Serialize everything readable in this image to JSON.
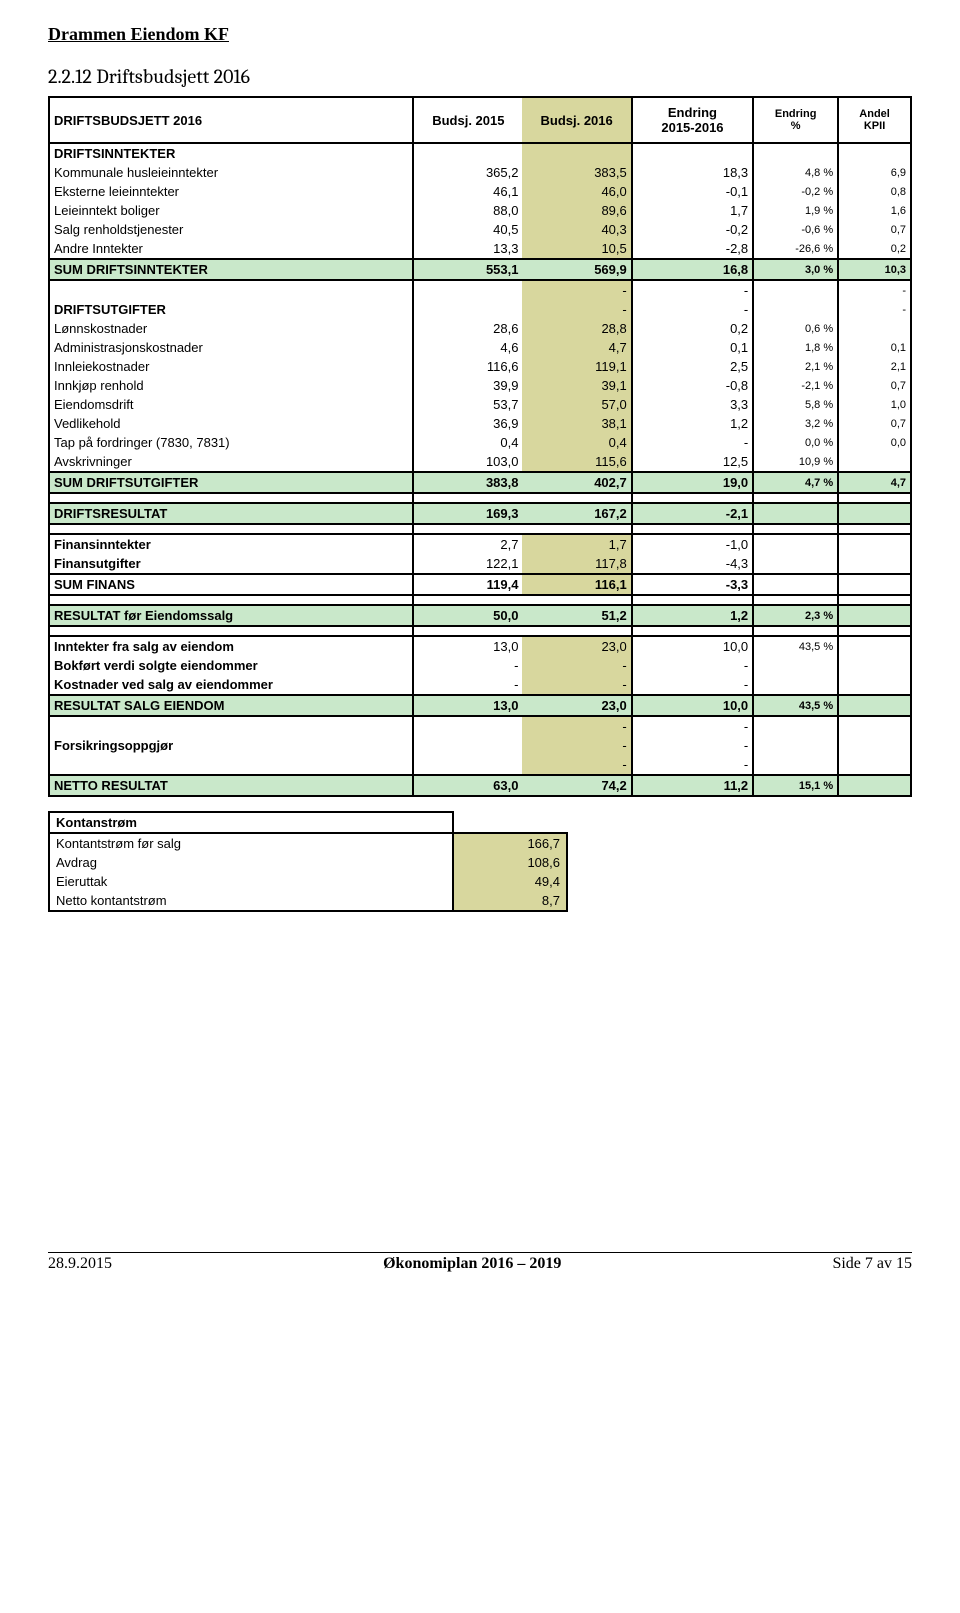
{
  "doc_header": "Drammen Eiendom KF",
  "section_title": "2.2.12  Driftsbudsjett 2016",
  "colors": {
    "olive": "#d8d79e",
    "green": "#c9e8ca",
    "border": "#000000",
    "bg": "#ffffff"
  },
  "header": {
    "c0": "DRIFTSBUDSJETT 2016",
    "c1": "Budsj. 2015",
    "c2": "Budsj. 2016",
    "c3a": "Endring",
    "c3b": "2015-2016",
    "c4a": "Endring",
    "c4b": "%",
    "c5a": "Andel",
    "c5b": "KPII"
  },
  "sections": {
    "driftsinntekter_label": "DRIFTSINNTEKTER",
    "driftsutgifter_label": "DRIFTSUTGIFTER"
  },
  "income_rows": [
    {
      "label": "Kommunale husleieinntekter",
      "v1": "365,2",
      "v2": "383,5",
      "ch": "18,3",
      "pct": "4,8 %",
      "k": "6,9"
    },
    {
      "label": "Eksterne leieinntekter",
      "v1": "46,1",
      "v2": "46,0",
      "ch": "-0,1",
      "pct": "-0,2 %",
      "k": "0,8"
    },
    {
      "label": "Leieinntekt boliger",
      "v1": "88,0",
      "v2": "89,6",
      "ch": "1,7",
      "pct": "1,9 %",
      "k": "1,6"
    },
    {
      "label": "Salg renholdstjenester",
      "v1": "40,5",
      "v2": "40,3",
      "ch": "-0,2",
      "pct": "-0,6 %",
      "k": "0,7"
    },
    {
      "label": "Andre Inntekter",
      "v1": "13,3",
      "v2": "10,5",
      "ch": "-2,8",
      "pct": "-26,6 %",
      "k": "0,2"
    }
  ],
  "sum_income": {
    "label": "SUM DRIFTSINNTEKTER",
    "v1": "553,1",
    "v2": "569,9",
    "ch": "16,8",
    "pct": "3,0 %",
    "k": "10,3"
  },
  "blank_dash_row": {
    "v1": "",
    "v2": "-",
    "ch": "-",
    "pct": "",
    "k": "-"
  },
  "driftsutgifter_dash": {
    "v1": "",
    "v2": "-",
    "ch": "-",
    "pct": "",
    "k": "-"
  },
  "expense_rows": [
    {
      "label": "Lønnskostnader",
      "v1": "28,6",
      "v2": "28,8",
      "ch": "0,2",
      "pct": "0,6 %",
      "k": ""
    },
    {
      "label": "Administrasjonskostnader",
      "v1": "4,6",
      "v2": "4,7",
      "ch": "0,1",
      "pct": "1,8 %",
      "k": "0,1"
    },
    {
      "label": "Innleiekostnader",
      "v1": "116,6",
      "v2": "119,1",
      "ch": "2,5",
      "pct": "2,1 %",
      "k": "2,1"
    },
    {
      "label": "Innkjøp renhold",
      "v1": "39,9",
      "v2": "39,1",
      "ch": "-0,8",
      "pct": "-2,1 %",
      "k": "0,7"
    },
    {
      "label": "Eiendomsdrift",
      "v1": "53,7",
      "v2": "57,0",
      "ch": "3,3",
      "pct": "5,8 %",
      "k": "1,0"
    },
    {
      "label": "Vedlikehold",
      "v1": "36,9",
      "v2": "38,1",
      "ch": "1,2",
      "pct": "3,2 %",
      "k": "0,7"
    },
    {
      "label": "Tap på fordringer (7830, 7831)",
      "v1": "0,4",
      "v2": "0,4",
      "ch": "-",
      "pct": "0,0 %",
      "k": "0,0"
    },
    {
      "label": "Avskrivninger",
      "v1": "103,0",
      "v2": "115,6",
      "ch": "12,5",
      "pct": "10,9 %",
      "k": ""
    }
  ],
  "sum_expense": {
    "label": "SUM DRIFTSUTGIFTER",
    "v1": "383,8",
    "v2": "402,7",
    "ch": "19,0",
    "pct": "4,7 %",
    "k": "4,7"
  },
  "driftsresultat": {
    "label": "DRIFTSRESULTAT",
    "v1": "169,3",
    "v2": "167,2",
    "ch": "-2,1",
    "pct": "",
    "k": ""
  },
  "finans_rows": [
    {
      "label": "Finansinntekter",
      "v1": "2,7",
      "v2": "1,7",
      "ch": "-1,0",
      "pct": "",
      "k": ""
    },
    {
      "label": "Finansutgifter",
      "v1": "122,1",
      "v2": "117,8",
      "ch": "-4,3",
      "pct": "",
      "k": ""
    }
  ],
  "sum_finans": {
    "label": "SUM FINANS",
    "v1": "119,4",
    "v2": "116,1",
    "ch": "-3,3",
    "pct": "",
    "k": ""
  },
  "resultat_for": {
    "label": "RESULTAT før Eiendomssalg",
    "v1": "50,0",
    "v2": "51,2",
    "ch": "1,2",
    "pct": "2,3 %",
    "k": ""
  },
  "salg_rows": [
    {
      "label": "Inntekter fra salg av eiendom",
      "v1": "13,0",
      "v2": "23,0",
      "ch": "10,0",
      "pct": "43,5 %",
      "k": "",
      "b": true
    },
    {
      "label": "Bokført verdi solgte eiendommer",
      "v1": "-",
      "v2": "-",
      "ch": "-",
      "pct": "",
      "k": "",
      "b": true
    },
    {
      "label": "Kostnader ved salg av eiendommer",
      "v1": "-",
      "v2": "-",
      "ch": "-",
      "pct": "",
      "k": "",
      "b": true
    }
  ],
  "resultat_salg": {
    "label": "RESULTAT SALG EIENDOM",
    "v1": "13,0",
    "v2": "23,0",
    "ch": "10,0",
    "pct": "43,5 %",
    "k": ""
  },
  "forsikr_label": "Forsikringsoppgjør",
  "forsikr_dashes": [
    {
      "v2": "-",
      "ch": "-"
    },
    {
      "v2": "-",
      "ch": "-"
    },
    {
      "v2": "-",
      "ch": "-"
    }
  ],
  "netto": {
    "label": "NETTO RESULTAT",
    "v1": "63,0",
    "v2": "74,2",
    "ch": "11,2",
    "pct": "15,1 %",
    "k": ""
  },
  "cashflow": {
    "title": "Kontanstrøm",
    "rows": [
      {
        "label": "Kontantstrøm før salg",
        "val": "166,7"
      },
      {
        "label": "Avdrag",
        "val": "108,6"
      },
      {
        "label": "Eieruttak",
        "val": "49,4"
      },
      {
        "label": "Netto kontantstrøm",
        "val": "8,7"
      }
    ]
  },
  "footer": {
    "left": "28.9.2015",
    "mid": "Økonomiplan 2016 – 2019",
    "right": "Side 7 av 15"
  }
}
